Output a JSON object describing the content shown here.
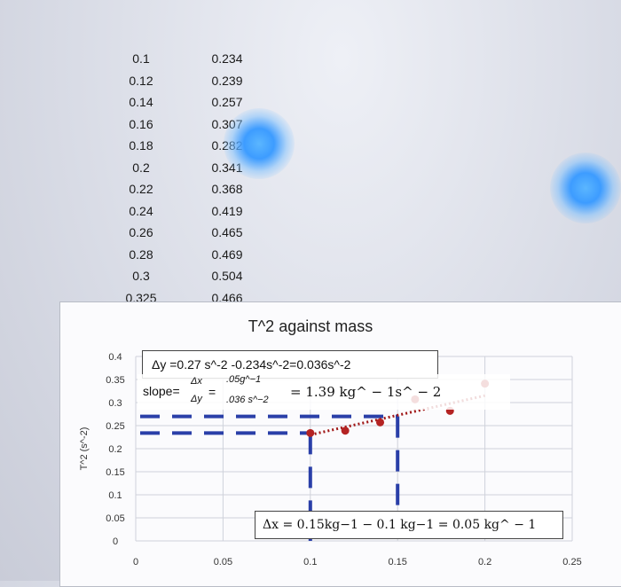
{
  "table": {
    "col1": [
      "0.1",
      "0.12",
      "0.14",
      "0.16",
      "0.18",
      "0.2",
      "0.22",
      "0.24",
      "0.26",
      "0.28",
      "0.3",
      "0.325"
    ],
    "col2": [
      "0.234",
      "0.239",
      "0.257",
      "0.307",
      "0.282",
      "0.341",
      "0.368",
      "0.419",
      "0.465",
      "0.469",
      "0.504",
      "0.466"
    ]
  },
  "chart_data": {
    "type": "scatter",
    "title": "T^2 against mass",
    "xlabel": "",
    "ylabel": "T^2 (s^-2)",
    "xlim": [
      0,
      0.25
    ],
    "ylim": [
      0,
      0.4
    ],
    "x_ticks": [
      "0",
      "0.05",
      "0.1",
      "0.15",
      "0.2",
      "0.25"
    ],
    "y_ticks": [
      "0",
      "0.05",
      "0.1",
      "0.15",
      "0.2",
      "0.25",
      "0.3",
      "0.35",
      "0.4"
    ],
    "grid": true,
    "series": [
      {
        "x": [
          0.1,
          0.12,
          0.14,
          0.16,
          0.18,
          0.2
        ],
        "y": [
          0.234,
          0.239,
          0.257,
          0.307,
          0.282,
          0.341
        ]
      }
    ],
    "trendline": {
      "style": "dotted",
      "x": [
        0.1,
        0.2
      ],
      "y": [
        0.23,
        0.315
      ]
    },
    "guide_lines": {
      "horizontal_y": [
        0.234,
        0.27
      ],
      "vertical_x": [
        0.1,
        0.15
      ]
    },
    "annotations": {
      "dy": "Δy =0.27 s^-2 -0.234s^-2=0.036s^-2",
      "slope_label": "slope=",
      "slope_num": "Δx",
      "slope_den": "Δy",
      "slope_num2": ".05g^−1",
      "slope_den2": ".036 s^−2",
      "slope_result": "= 1.39 kg^ − 1s^ − 2",
      "dx": "Δx = 0.15kg−1 − 0.1 kg−1 = 0.05 kg^ − 1"
    }
  },
  "colors": {
    "series": "#b42323",
    "trendline": "#a01818",
    "guide": "#2a3fa8",
    "grid": "#cfd2da"
  }
}
